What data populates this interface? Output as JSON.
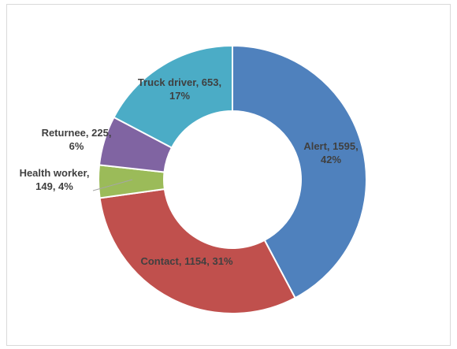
{
  "chart_data": {
    "type": "donut",
    "values": [
      1595,
      1154,
      149,
      225,
      653
    ],
    "value_labels": [
      "Alert, 1595, 42%",
      "Contact, 1154, 31%",
      "Health worker, 149, 4%",
      "Returnee, 225, 6%",
      "Truck driver, 653, 17%"
    ],
    "colors": [
      "#4f81bd",
      "#c0504d",
      "#9bbb59",
      "#8064a2",
      "#4bacc6"
    ]
  }
}
